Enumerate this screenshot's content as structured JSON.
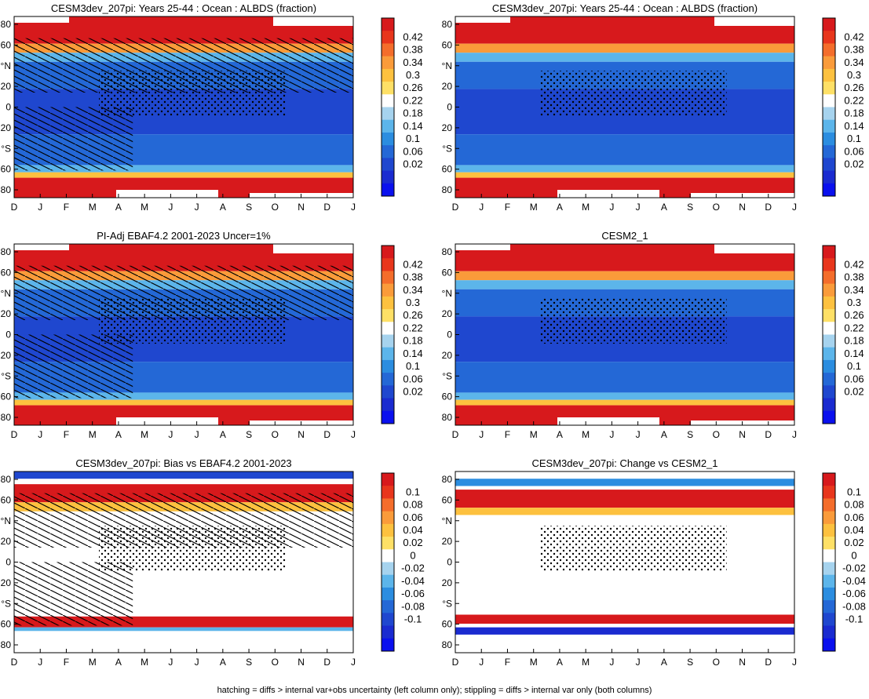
{
  "figure": {
    "footer": "hatching = diffs > internal var+obs uncertainty (left column only); stippling = diffs > internal var only (both columns)"
  },
  "chart_data": [
    {
      "type": "heatmap",
      "title": "CESM3dev_207pi: Years 25-44 : Ocean : ALBDS (fraction)",
      "x_tick_labels": [
        "D",
        "J",
        "F",
        "M",
        "A",
        "M",
        "J",
        "J",
        "A",
        "S",
        "O",
        "N",
        "D",
        "J"
      ],
      "y_tick_labels": [
        "80",
        "60",
        "°N",
        "20",
        "0",
        "20",
        "°S",
        "60",
        "80"
      ],
      "colorbar_labels": [
        "0.42",
        "0.38",
        "0.34",
        "0.3",
        "0.26",
        "0.22",
        "0.18",
        "0.14",
        "0.1",
        "0.06",
        "0.02"
      ],
      "colorbar_colors": [
        "#d7191c",
        "#e8361c",
        "#f46d2b",
        "#fa9b3a",
        "#fdc13f",
        "#fee066",
        "#ffffff",
        "#a6d3ee",
        "#5cb5ea",
        "#2b8de0",
        "#2468d6",
        "#1f47cf",
        "#1a2bd0",
        "#0a10ee"
      ],
      "field": "albedo",
      "overlays": [
        "hatching",
        "stippling"
      ]
    },
    {
      "type": "heatmap",
      "title": "CESM3dev_207pi: Years 25-44 : Ocean : ALBDS (fraction)",
      "x_tick_labels": [
        "D",
        "J",
        "F",
        "M",
        "A",
        "M",
        "J",
        "J",
        "A",
        "S",
        "O",
        "N",
        "D",
        "J"
      ],
      "y_tick_labels": [
        "80",
        "60",
        "°N",
        "20",
        "0",
        "20",
        "°S",
        "60",
        "80"
      ],
      "colorbar_labels": [
        "0.42",
        "0.38",
        "0.34",
        "0.3",
        "0.26",
        "0.22",
        "0.18",
        "0.14",
        "0.1",
        "0.06",
        "0.02"
      ],
      "colorbar_colors": [
        "#d7191c",
        "#e8361c",
        "#f46d2b",
        "#fa9b3a",
        "#fdc13f",
        "#fee066",
        "#ffffff",
        "#a6d3ee",
        "#5cb5ea",
        "#2b8de0",
        "#2468d6",
        "#1f47cf",
        "#1a2bd0",
        "#0a10ee"
      ],
      "field": "albedo",
      "overlays": [
        "stippling"
      ]
    },
    {
      "type": "heatmap",
      "title": "PI-Adj EBAF4.2 2001-2023 Uncer=1%",
      "x_tick_labels": [
        "D",
        "J",
        "F",
        "M",
        "A",
        "M",
        "J",
        "J",
        "A",
        "S",
        "O",
        "N",
        "D",
        "J"
      ],
      "y_tick_labels": [
        "80",
        "60",
        "°N",
        "20",
        "0",
        "20",
        "°S",
        "60",
        "80"
      ],
      "colorbar_labels": [
        "0.42",
        "0.38",
        "0.34",
        "0.3",
        "0.26",
        "0.22",
        "0.18",
        "0.14",
        "0.1",
        "0.06",
        "0.02"
      ],
      "colorbar_colors": [
        "#d7191c",
        "#e8361c",
        "#f46d2b",
        "#fa9b3a",
        "#fdc13f",
        "#fee066",
        "#ffffff",
        "#a6d3ee",
        "#5cb5ea",
        "#2b8de0",
        "#2468d6",
        "#1f47cf",
        "#1a2bd0",
        "#0a10ee"
      ],
      "field": "albedo",
      "overlays": [
        "hatching",
        "stippling"
      ]
    },
    {
      "type": "heatmap",
      "title": "CESM2_1",
      "x_tick_labels": [
        "D",
        "J",
        "F",
        "M",
        "A",
        "M",
        "J",
        "J",
        "A",
        "S",
        "O",
        "N",
        "D",
        "J"
      ],
      "y_tick_labels": [
        "80",
        "60",
        "°N",
        "20",
        "0",
        "20",
        "°S",
        "60",
        "80"
      ],
      "colorbar_labels": [
        "0.42",
        "0.38",
        "0.34",
        "0.3",
        "0.26",
        "0.22",
        "0.18",
        "0.14",
        "0.1",
        "0.06",
        "0.02"
      ],
      "colorbar_colors": [
        "#d7191c",
        "#e8361c",
        "#f46d2b",
        "#fa9b3a",
        "#fdc13f",
        "#fee066",
        "#ffffff",
        "#a6d3ee",
        "#5cb5ea",
        "#2b8de0",
        "#2468d6",
        "#1f47cf",
        "#1a2bd0",
        "#0a10ee"
      ],
      "field": "albedo",
      "overlays": [
        "stippling"
      ]
    },
    {
      "type": "heatmap",
      "title": "CESM3dev_207pi: Bias vs EBAF4.2 2001-2023",
      "x_tick_labels": [
        "D",
        "J",
        "F",
        "M",
        "A",
        "M",
        "J",
        "J",
        "A",
        "S",
        "O",
        "N",
        "D",
        "J"
      ],
      "y_tick_labels": [
        "80",
        "60",
        "°N",
        "20",
        "0",
        "20",
        "°S",
        "60",
        "80"
      ],
      "colorbar_labels": [
        "0.1",
        "0.08",
        "0.06",
        "0.04",
        "0.02",
        "0",
        "-0.02",
        "-0.04",
        "-0.06",
        "-0.08",
        "-0.1"
      ],
      "colorbar_colors": [
        "#d7191c",
        "#e8361c",
        "#f46d2b",
        "#fa9b3a",
        "#fdc13f",
        "#fee066",
        "#ffffff",
        "#a6d3ee",
        "#5cb5ea",
        "#2b8de0",
        "#2468d6",
        "#1f47cf",
        "#1a2bd0",
        "#0a10ee"
      ],
      "field": "bias",
      "overlays": [
        "hatching",
        "stippling"
      ]
    },
    {
      "type": "heatmap",
      "title": "CESM3dev_207pi: Change vs CESM2_1",
      "x_tick_labels": [
        "D",
        "J",
        "F",
        "M",
        "A",
        "M",
        "J",
        "J",
        "A",
        "S",
        "O",
        "N",
        "D",
        "J"
      ],
      "y_tick_labels": [
        "80",
        "60",
        "°N",
        "20",
        "0",
        "20",
        "°S",
        "60",
        "80"
      ],
      "colorbar_labels": [
        "0.1",
        "0.08",
        "0.06",
        "0.04",
        "0.02",
        "0",
        "-0.02",
        "-0.04",
        "-0.06",
        "-0.08",
        "-0.1"
      ],
      "colorbar_colors": [
        "#d7191c",
        "#e8361c",
        "#f46d2b",
        "#fa9b3a",
        "#fdc13f",
        "#fee066",
        "#ffffff",
        "#a6d3ee",
        "#5cb5ea",
        "#2b8de0",
        "#2468d6",
        "#1f47cf",
        "#1a2bd0",
        "#0a10ee"
      ],
      "field": "change",
      "overlays": [
        "stippling"
      ]
    }
  ]
}
